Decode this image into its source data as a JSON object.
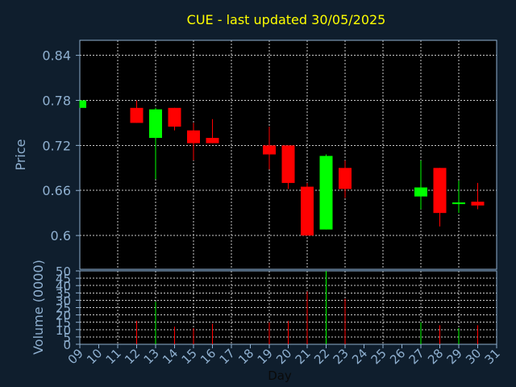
{
  "chart_data": {
    "type": "candlestick",
    "title": "CUE - last updated 30/05/2025",
    "xlabel": "Day",
    "price_ylabel": "Price",
    "volume_ylabel": "Volume (0000)",
    "x_ticks": [
      "09",
      "10",
      "11",
      "12",
      "13",
      "14",
      "15",
      "16",
      "17",
      "18",
      "19",
      "20",
      "21",
      "22",
      "23",
      "24",
      "25",
      "26",
      "27",
      "28",
      "29",
      "30",
      "31"
    ],
    "price_yticks": [
      "0.6",
      "0.66",
      "0.72",
      "0.78",
      "0.84"
    ],
    "volume_yticks": [
      "0",
      "5",
      "10",
      "15",
      "20",
      "25",
      "30",
      "35",
      "40",
      "45",
      "50"
    ],
    "price_ylim": [
      0.555,
      0.86
    ],
    "volume_ylim": [
      0,
      50
    ],
    "grid": true,
    "colors": {
      "background": "#0f1e2d",
      "text": "#8fb0d0",
      "title": "#ffff00",
      "up": "#00ff00",
      "down": "#ff0000",
      "grid": "#c8c8c8"
    },
    "candles": [
      {
        "day": 9,
        "open": 0.77,
        "high": 0.78,
        "low": 0.77,
        "close": 0.78,
        "volume": 0
      },
      {
        "day": 12,
        "open": 0.77,
        "high": 0.78,
        "low": 0.75,
        "close": 0.75,
        "volume": 16
      },
      {
        "day": 13,
        "open": 0.73,
        "high": 0.77,
        "low": 0.675,
        "close": 0.768,
        "volume": 29
      },
      {
        "day": 14,
        "open": 0.77,
        "high": 0.77,
        "low": 0.74,
        "close": 0.745,
        "volume": 12
      },
      {
        "day": 15,
        "open": 0.74,
        "high": 0.75,
        "low": 0.7,
        "close": 0.723,
        "volume": 11
      },
      {
        "day": 16,
        "open": 0.73,
        "high": 0.755,
        "low": 0.723,
        "close": 0.723,
        "volume": 14
      },
      {
        "day": 19,
        "open": 0.72,
        "high": 0.745,
        "low": 0.688,
        "close": 0.708,
        "volume": 15
      },
      {
        "day": 20,
        "open": 0.72,
        "high": 0.72,
        "low": 0.662,
        "close": 0.67,
        "volume": 16
      },
      {
        "day": 21,
        "open": 0.665,
        "high": 0.67,
        "low": 0.6,
        "close": 0.6,
        "volume": 36
      },
      {
        "day": 22,
        "open": 0.608,
        "high": 0.708,
        "low": 0.608,
        "close": 0.706,
        "volume": 50
      },
      {
        "day": 23,
        "open": 0.69,
        "high": 0.7,
        "low": 0.65,
        "close": 0.662,
        "volume": 31
      },
      {
        "day": 27,
        "open": 0.652,
        "high": 0.7,
        "low": 0.635,
        "close": 0.664,
        "volume": 15
      },
      {
        "day": 28,
        "open": 0.69,
        "high": 0.69,
        "low": 0.612,
        "close": 0.63,
        "volume": 13
      },
      {
        "day": 29,
        "open": 0.643,
        "high": 0.673,
        "low": 0.63,
        "close": 0.644,
        "volume": 11
      },
      {
        "day": 30,
        "open": 0.645,
        "high": 0.67,
        "low": 0.635,
        "close": 0.64,
        "volume": 13
      }
    ]
  }
}
